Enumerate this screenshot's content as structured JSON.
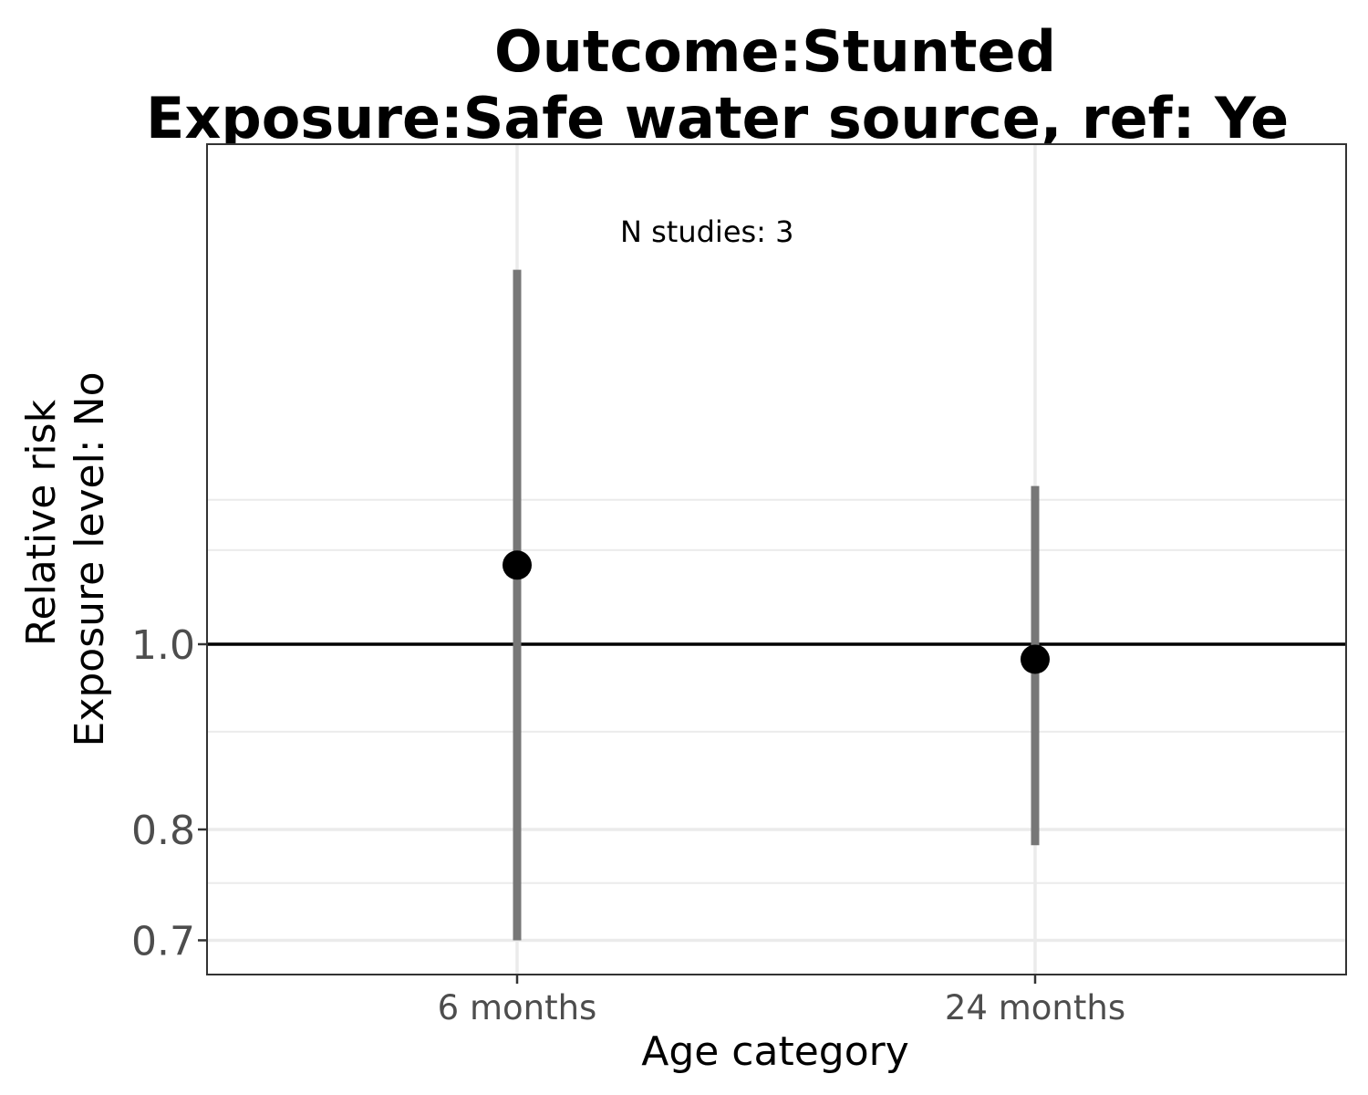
{
  "chart_data": {
    "type": "scatter",
    "title_line1": "Outcome:Stunted",
    "title_line2": "Exposure:Safe water source, ref: Ye",
    "xlabel": "Age category",
    "ylabel_line1": "Relative risk",
    "ylabel_line2": "Exposure level: No",
    "y_scale": "log",
    "ylim": [
      0.68,
      1.62
    ],
    "y_ticks": [
      0.7,
      0.8,
      1.0
    ],
    "y_tick_labels": [
      "0.7",
      "0.8",
      "1.0"
    ],
    "y_minor_grid": [
      0.75,
      0.9,
      1.12,
      1.19
    ],
    "reference_line": 1.0,
    "categories": [
      "6 months",
      "24 months"
    ],
    "estimates": [
      1.1,
      0.982
    ],
    "ci_lower": [
      0.7,
      0.785
    ],
    "ci_upper": [
      1.57,
      1.21
    ],
    "annotation": "N studies: 3",
    "grid": true,
    "colors": {
      "point": "#000000",
      "ci": "#777777",
      "grid": "#ebebeb",
      "refline": "#000000"
    }
  }
}
